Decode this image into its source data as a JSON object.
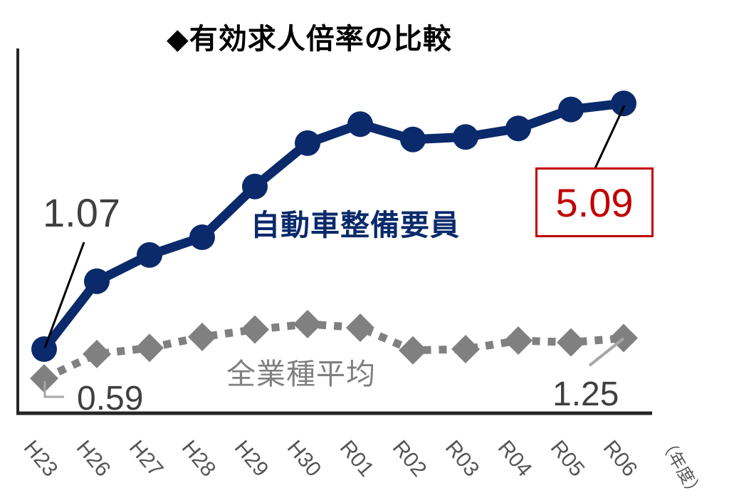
{
  "title": "◆有効求人倍率の比較",
  "series_labels": {
    "mechanic": "自動車整備要員",
    "all": "全業種平均"
  },
  "annotations": {
    "mechanic_start": "1.07",
    "mechanic_end": "5.09",
    "all_start": "0.59",
    "all_end": "1.25"
  },
  "x_unit": "（年度）",
  "x_ticks": [
    "H23",
    "H26",
    "H27",
    "H28",
    "H29",
    "H30",
    "R01",
    "R02",
    "R03",
    "R04",
    "R05",
    "R06"
  ],
  "colors": {
    "mechanic": "#0a2a6b",
    "all": "#808080",
    "highlight": "#c00000",
    "axis": "#262626"
  },
  "chart_data": {
    "type": "line",
    "title": "◆有効求人倍率の比較",
    "xlabel": "（年度）",
    "ylabel": "",
    "categories": [
      "H23",
      "H26",
      "H27",
      "H28",
      "H29",
      "H30",
      "R01",
      "R02",
      "R03",
      "R04",
      "R05",
      "R06"
    ],
    "series": [
      {
        "name": "自動車整備要員",
        "values": [
          1.07,
          2.18,
          2.61,
          2.9,
          3.73,
          4.44,
          4.75,
          4.5,
          4.54,
          4.68,
          4.99,
          5.09
        ],
        "color": "#0a2a6b",
        "marker": "circle",
        "line_style": "solid"
      },
      {
        "name": "全業種平均",
        "values": [
          0.59,
          0.99,
          1.09,
          1.27,
          1.39,
          1.48,
          1.42,
          1.05,
          1.07,
          1.21,
          1.18,
          1.25
        ],
        "color": "#808080",
        "marker": "diamond",
        "line_style": "dotted"
      }
    ],
    "data_labels": [
      {
        "series": "自動車整備要員",
        "category": "H23",
        "text": "1.07"
      },
      {
        "series": "自動車整備要員",
        "category": "R06",
        "text": "5.09",
        "boxed": true,
        "color": "#c00000"
      },
      {
        "series": "全業種平均",
        "category": "H23",
        "text": "0.59"
      },
      {
        "series": "全業種平均",
        "category": "R06",
        "text": "1.25"
      }
    ],
    "ylim": [
      0,
      5.9
    ],
    "grid": false,
    "legend": "inline labels"
  }
}
